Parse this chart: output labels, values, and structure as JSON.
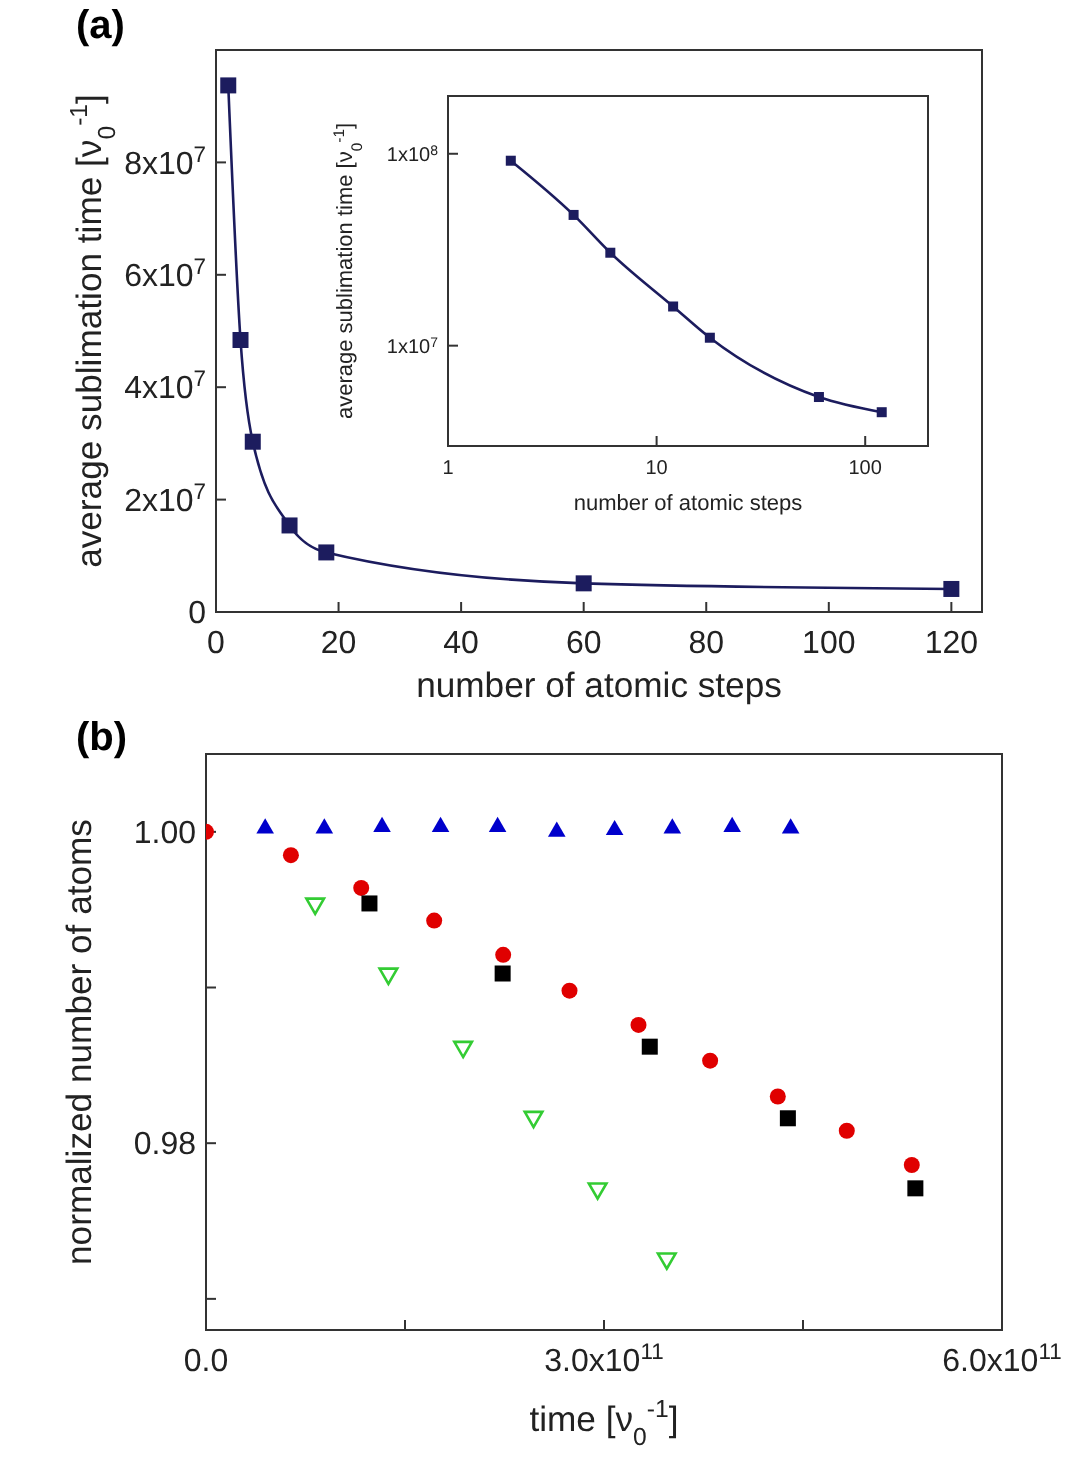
{
  "chart_data": [
    {
      "type": "line",
      "title": "(a)",
      "xlabel": "number of atomic steps",
      "ylabel": "average sublimation time [ν$_{0}$$^{-1}$]",
      "xlim": [
        0,
        125
      ],
      "xticks": [
        0,
        20,
        40,
        60,
        80,
        100,
        120
      ],
      "ylim": [
        0,
        100000000
      ],
      "yticks": [
        {
          "value": 0,
          "label": "0"
        },
        {
          "value": 20000000,
          "label": "2x10$^{7}$"
        },
        {
          "value": 40000000,
          "label": "4x10$^{7}$"
        },
        {
          "value": 60000000,
          "label": "6x10$^{7}$"
        },
        {
          "value": 80000000,
          "label": "8x10$^{7}$"
        }
      ],
      "marker": "square",
      "line_style": "solid",
      "series": [
        {
          "color": "#1c1c5e",
          "x": [
            2,
            4,
            6,
            12,
            18,
            60,
            120
          ],
          "values": [
            93700000,
            48400000,
            30300000,
            15400000,
            10600000,
            5100000,
            4100000
          ]
        }
      ]
    },
    {
      "type": "line",
      "xlabel": "number of atomic steps",
      "ylabel": "average sublimation time [ν$_{0}$$^{-1}$]",
      "log": "xy",
      "xlim": [
        1,
        200
      ],
      "xticks": [
        1,
        10,
        100
      ],
      "ylim": [
        3000000,
        200000000
      ],
      "yticks": [
        {
          "value": 10000000,
          "label": "1x10$^{7}$"
        },
        {
          "value": 100000000,
          "label": "1x10$^{8}$"
        }
      ],
      "marker": "square",
      "line_style": "solid",
      "series": [
        {
          "color": "#1c1c5e",
          "x": [
            2,
            4,
            6,
            12,
            18,
            60,
            120
          ],
          "values": [
            92000000,
            48000000,
            30500000,
            16000000,
            11000000,
            5400000,
            4500000
          ]
        }
      ]
    },
    {
      "type": "scatter",
      "title": "(b)",
      "xlabel": "time [ν$_{0}$$^{-1}$]",
      "ylabel": "normalized number of atoms",
      "xlim": [
        0,
        600000000000
      ],
      "xticks": [
        {
          "value": 0,
          "label": "0.0"
        },
        {
          "value": 150000000000,
          "label": null
        },
        {
          "value": 300000000000,
          "label": "3.0x10$^{11}$"
        },
        {
          "value": 450000000000,
          "label": null
        },
        {
          "value": 600000000000,
          "label": "6.0x10$^{11}$"
        }
      ],
      "ylim": [
        0.968,
        1.005
      ],
      "yticks": [
        {
          "value": 0.97,
          "label": null
        },
        {
          "value": 0.98,
          "label": "0.98"
        },
        {
          "value": 0.99,
          "label": null
        },
        {
          "value": 1.0,
          "label": "1.00"
        }
      ],
      "series": [
        {
          "color": "#0000cc",
          "marker": "triangle",
          "x": [
            44600000000,
            89200000000,
            132700000000,
            176800000000,
            219800000000,
            264400000000,
            308000000000,
            351500000000,
            396600000000,
            440700000000
          ],
          "values": [
            1.0003,
            1.0003,
            1.0004,
            1.0004,
            1.0004,
            1.0001,
            1.0002,
            1.0003,
            1.0004,
            1.0003
          ]
        },
        {
          "color": "#e00000",
          "marker": "circle",
          "x": [
            0,
            64000000000,
            117000000000,
            172000000000,
            224000000000,
            274000000000,
            326000000000,
            380000000000,
            431000000000,
            483000000000,
            532000000000
          ],
          "values": [
            1.0,
            0.9985,
            0.9964,
            0.9943,
            0.9921,
            0.9898,
            0.9876,
            0.9853,
            0.983,
            0.9808,
            0.9786
          ]
        },
        {
          "color": "#000000",
          "marker": "square",
          "x": [
            123200000000,
            223600000000,
            334500000000,
            438600000000,
            534700000000
          ],
          "values": [
            0.9954,
            0.9909,
            0.9862,
            0.9816,
            0.9771
          ]
        },
        {
          "color": "#33cc33",
          "marker": "triangle-down",
          "x": [
            82300000000,
            137500000000,
            193800000000,
            246900000000,
            295200000000,
            347300000000
          ],
          "values": [
            0.9953,
            0.9908,
            0.9861,
            0.9816,
            0.977,
            0.9725
          ]
        }
      ]
    }
  ]
}
